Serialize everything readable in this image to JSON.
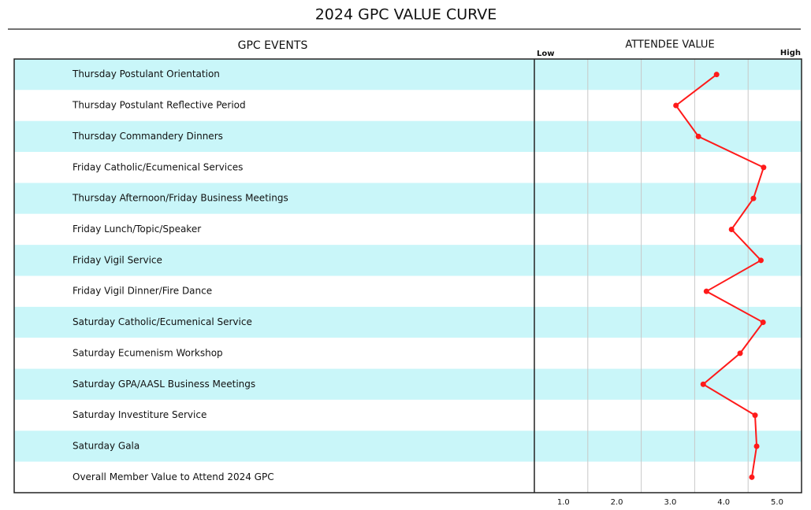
{
  "chart_data": {
    "type": "line",
    "title": "2024 GPC VALUE CURVE",
    "category_header": "GPC EVENTS",
    "value_header": "ATTENDEE VALUE",
    "low_label": "Low",
    "high_label": "High",
    "categories": [
      "Thursday Postulant Orientation",
      "Thursday Postulant Reflective Period",
      "Thursday Commandery Dinners",
      "Friday Catholic/Ecumenical Services",
      "Thursday Afternoon/Friday Business Meetings",
      "Friday Lunch/Topic/Speaker",
      "Friday Vigil Service",
      "Friday Vigil Dinner/Fire Dance",
      "Saturday Catholic/Ecumenical Service",
      "Saturday Ecumenism Workshop",
      "Saturday GPA/AASL Business Meetings",
      "Saturday Investiture Service",
      "Saturday Gala",
      "Overall Member Value to Attend 2024 GPC"
    ],
    "values": [
      3.41,
      2.65,
      3.07,
      4.29,
      4.1,
      3.69,
      4.24,
      3.22,
      4.28,
      3.85,
      3.16,
      4.13,
      4.16,
      4.07
    ],
    "color": "#ff1a1a",
    "row_colors": [
      "#c9f6f9",
      "#ffffff"
    ],
    "xlim": [
      0,
      5
    ],
    "xticks": [
      {
        "value": 1,
        "label": "1.0"
      },
      {
        "value": 2,
        "label": "2.0"
      },
      {
        "value": 3,
        "label": "3.0"
      },
      {
        "value": 4,
        "label": "4.0"
      },
      {
        "value": 5,
        "label": "5.0"
      }
    ],
    "grid": true
  }
}
